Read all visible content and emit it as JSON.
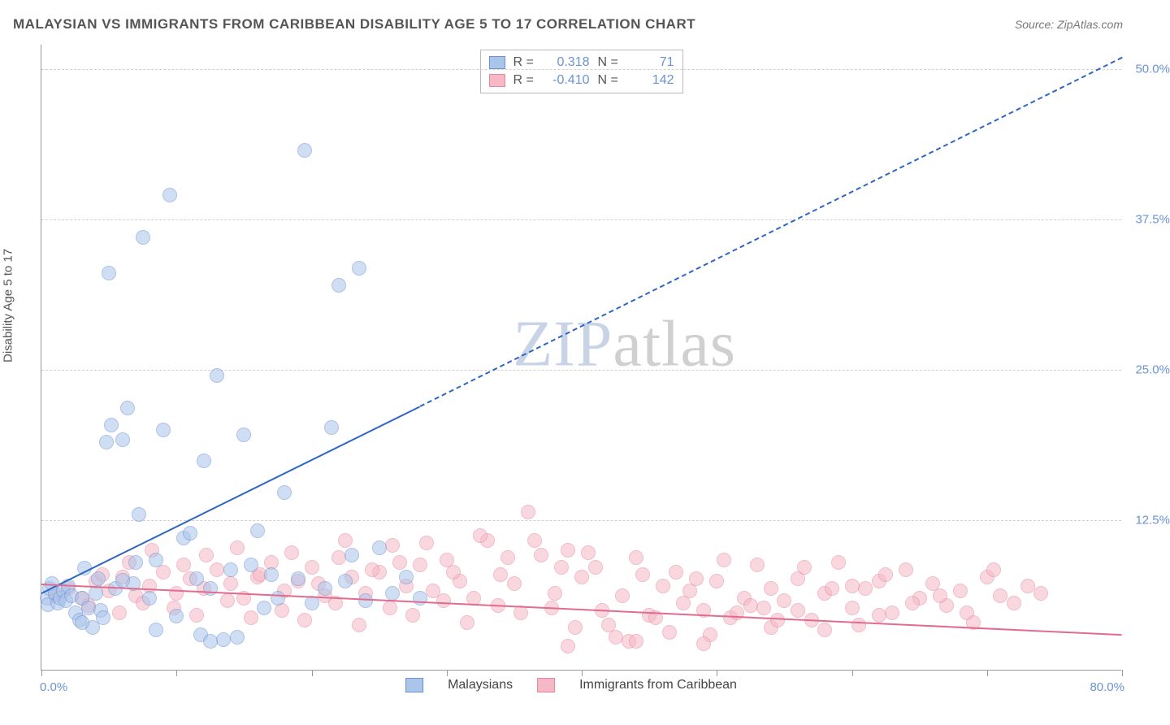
{
  "title": "MALAYSIAN VS IMMIGRANTS FROM CARIBBEAN DISABILITY AGE 5 TO 17 CORRELATION CHART",
  "source": "Source: ZipAtlas.com",
  "yAxisTitle": "Disability Age 5 to 17",
  "watermark": {
    "zip": "ZIP",
    "atlas": "atlas"
  },
  "chart": {
    "type": "scatter",
    "background_color": "#ffffff",
    "grid_color": "#d0d0d0",
    "axis_color": "#999999",
    "label_color": "#6a93d4",
    "xlim": [
      0,
      80
    ],
    "ylim": [
      0,
      52
    ],
    "xtick_step": 10,
    "ytick_step": 12.5,
    "x_labels": {
      "min": "0.0%",
      "max": "80.0%"
    },
    "y_labels": [
      "12.5%",
      "25.0%",
      "37.5%",
      "50.0%"
    ],
    "marker_radius": 9,
    "marker_opacity": 0.55
  },
  "series": [
    {
      "key": "malaysians",
      "label": "Malaysians",
      "fill_color": "#aac4ea",
      "stroke_color": "#6a93d4",
      "trend_color": "#2f66c4",
      "R": "0.318",
      "N": "71",
      "trend": {
        "x1": 0,
        "y1": 6.5,
        "x2_solid": 28,
        "y2_solid": 22,
        "x2_dash": 80,
        "y2_dash": 51,
        "width": 2
      },
      "points": [
        [
          0.4,
          6.0
        ],
        [
          0.5,
          5.5
        ],
        [
          0.6,
          6.8
        ],
        [
          0.8,
          7.2
        ],
        [
          1.0,
          6.4
        ],
        [
          1.2,
          5.6
        ],
        [
          1.4,
          6.0
        ],
        [
          1.6,
          6.6
        ],
        [
          1.8,
          5.8
        ],
        [
          2.0,
          7.0
        ],
        [
          2.2,
          6.2
        ],
        [
          2.5,
          4.8
        ],
        [
          2.8,
          4.2
        ],
        [
          3.0,
          6.0
        ],
        [
          3.2,
          8.5
        ],
        [
          3.5,
          5.2
        ],
        [
          3.8,
          3.6
        ],
        [
          4.0,
          6.4
        ],
        [
          4.2,
          7.6
        ],
        [
          4.4,
          5.0
        ],
        [
          4.6,
          4.4
        ],
        [
          5.0,
          33.0
        ],
        [
          5.5,
          6.8
        ],
        [
          6.0,
          19.2
        ],
        [
          6.4,
          21.8
        ],
        [
          6.8,
          7.2
        ],
        [
          7.2,
          13.0
        ],
        [
          7.5,
          36.0
        ],
        [
          8.0,
          6.0
        ],
        [
          8.5,
          9.2
        ],
        [
          9.0,
          20.0
        ],
        [
          9.5,
          39.5
        ],
        [
          10.0,
          4.5
        ],
        [
          10.5,
          11.0
        ],
        [
          11.0,
          11.4
        ],
        [
          11.5,
          7.6
        ],
        [
          12.0,
          17.4
        ],
        [
          12.5,
          6.8
        ],
        [
          13.0,
          24.5
        ],
        [
          13.5,
          2.6
        ],
        [
          14.0,
          8.4
        ],
        [
          14.5,
          2.8
        ],
        [
          15.0,
          19.6
        ],
        [
          15.5,
          8.8
        ],
        [
          16.0,
          11.6
        ],
        [
          16.5,
          5.2
        ],
        [
          17.0,
          8.0
        ],
        [
          17.5,
          6.0
        ],
        [
          18.0,
          14.8
        ],
        [
          19.0,
          7.6
        ],
        [
          19.5,
          43.2
        ],
        [
          20.0,
          5.6
        ],
        [
          21.0,
          6.8
        ],
        [
          21.5,
          20.2
        ],
        [
          22.0,
          32.0
        ],
        [
          22.5,
          7.4
        ],
        [
          23.0,
          9.6
        ],
        [
          23.5,
          33.4
        ],
        [
          24.0,
          5.8
        ],
        [
          25.0,
          10.2
        ],
        [
          26.0,
          6.4
        ],
        [
          27.0,
          7.8
        ],
        [
          28.0,
          6.0
        ],
        [
          3.0,
          4.0
        ],
        [
          4.8,
          19.0
        ],
        [
          5.2,
          20.4
        ],
        [
          6.0,
          7.5
        ],
        [
          7.0,
          9.0
        ],
        [
          8.5,
          3.4
        ],
        [
          11.8,
          3.0
        ],
        [
          12.5,
          2.4
        ]
      ]
    },
    {
      "key": "caribbean",
      "label": "Immigrants from Caribbean",
      "fill_color": "#f5b8c4",
      "stroke_color": "#e788a0",
      "trend_color": "#e26b8e",
      "R": "-0.410",
      "N": "142",
      "trend": {
        "x1": 0,
        "y1": 7.2,
        "x2_solid": 80,
        "y2_solid": 3.0,
        "width": 2
      },
      "points": [
        [
          1,
          6.2
        ],
        [
          2,
          6.8
        ],
        [
          3,
          6.0
        ],
        [
          4,
          7.4
        ],
        [
          5,
          6.6
        ],
        [
          6,
          7.8
        ],
        [
          7,
          6.2
        ],
        [
          8,
          7.0
        ],
        [
          9,
          8.2
        ],
        [
          10,
          6.4
        ],
        [
          11,
          7.6
        ],
        [
          12,
          6.8
        ],
        [
          13,
          8.4
        ],
        [
          14,
          7.2
        ],
        [
          15,
          6.0
        ],
        [
          16,
          7.8
        ],
        [
          17,
          9.0
        ],
        [
          18,
          6.6
        ],
        [
          19,
          7.4
        ],
        [
          20,
          8.6
        ],
        [
          21,
          6.2
        ],
        [
          22,
          9.4
        ],
        [
          23,
          7.8
        ],
        [
          24,
          6.4
        ],
        [
          25,
          8.2
        ],
        [
          26,
          10.4
        ],
        [
          27,
          7.0
        ],
        [
          28,
          8.8
        ],
        [
          29,
          6.6
        ],
        [
          30,
          9.2
        ],
        [
          31,
          7.4
        ],
        [
          32,
          6.0
        ],
        [
          33,
          10.8
        ],
        [
          34,
          8.0
        ],
        [
          35,
          7.2
        ],
        [
          36,
          13.2
        ],
        [
          37,
          9.6
        ],
        [
          38,
          6.4
        ],
        [
          39,
          10.0
        ],
        [
          40,
          7.8
        ],
        [
          41,
          8.6
        ],
        [
          42,
          3.8
        ],
        [
          43,
          6.2
        ],
        [
          44,
          9.4
        ],
        [
          45,
          4.6
        ],
        [
          46,
          7.0
        ],
        [
          47,
          8.2
        ],
        [
          48,
          6.6
        ],
        [
          49,
          5.0
        ],
        [
          50,
          7.4
        ],
        [
          51,
          4.4
        ],
        [
          52,
          6.0
        ],
        [
          53,
          8.8
        ],
        [
          54,
          3.6
        ],
        [
          55,
          5.8
        ],
        [
          56,
          7.6
        ],
        [
          57,
          4.2
        ],
        [
          58,
          6.4
        ],
        [
          59,
          9.0
        ],
        [
          60,
          5.2
        ],
        [
          61,
          6.8
        ],
        [
          62,
          7.4
        ],
        [
          63,
          4.8
        ],
        [
          64,
          8.4
        ],
        [
          65,
          6.0
        ],
        [
          66,
          7.2
        ],
        [
          67,
          5.4
        ],
        [
          68,
          6.6
        ],
        [
          69,
          4.0
        ],
        [
          70,
          7.8
        ],
        [
          71,
          6.2
        ],
        [
          72,
          5.6
        ],
        [
          73,
          7.0
        ],
        [
          74,
          6.4
        ],
        [
          54,
          6.8
        ],
        [
          56,
          5.0
        ],
        [
          58,
          3.4
        ],
        [
          60,
          7.0
        ],
        [
          62,
          4.6
        ],
        [
          4.5,
          8.0
        ],
        [
          6.5,
          9.0
        ],
        [
          8.2,
          10.0
        ],
        [
          10.5,
          8.8
        ],
        [
          12.2,
          9.6
        ],
        [
          14.5,
          10.2
        ],
        [
          16.2,
          8.0
        ],
        [
          18.5,
          9.8
        ],
        [
          20.5,
          7.2
        ],
        [
          22.5,
          10.8
        ],
        [
          24.5,
          8.4
        ],
        [
          26.5,
          9.0
        ],
        [
          28.5,
          10.6
        ],
        [
          30.5,
          8.2
        ],
        [
          32.5,
          11.2
        ],
        [
          34.5,
          9.4
        ],
        [
          36.5,
          10.8
        ],
        [
          38.5,
          8.6
        ],
        [
          40.5,
          9.8
        ],
        [
          42.5,
          2.8
        ],
        [
          44.5,
          8.0
        ],
        [
          46.5,
          3.2
        ],
        [
          48.5,
          7.6
        ],
        [
          50.5,
          9.2
        ],
        [
          52.5,
          5.4
        ],
        [
          54.5,
          4.2
        ],
        [
          56.5,
          8.6
        ],
        [
          58.5,
          6.8
        ],
        [
          60.5,
          3.8
        ],
        [
          62.5,
          8.0
        ],
        [
          64.5,
          5.6
        ],
        [
          66.5,
          6.2
        ],
        [
          68.5,
          4.8
        ],
        [
          70.5,
          8.4
        ],
        [
          3.5,
          5.4
        ],
        [
          5.8,
          4.8
        ],
        [
          7.5,
          5.6
        ],
        [
          9.8,
          5.2
        ],
        [
          11.5,
          4.6
        ],
        [
          13.8,
          5.8
        ],
        [
          15.5,
          4.4
        ],
        [
          17.8,
          5.0
        ],
        [
          19.5,
          4.2
        ],
        [
          21.8,
          5.6
        ],
        [
          23.5,
          3.8
        ],
        [
          25.8,
          5.2
        ],
        [
          27.5,
          4.6
        ],
        [
          29.8,
          5.8
        ],
        [
          31.5,
          4.0
        ],
        [
          33.8,
          5.4
        ],
        [
          35.5,
          4.8
        ],
        [
          37.8,
          5.2
        ],
        [
          39.5,
          3.6
        ],
        [
          41.5,
          5.0
        ],
        [
          43.5,
          2.4
        ],
        [
          45.5,
          4.4
        ],
        [
          47.5,
          5.6
        ],
        [
          49.5,
          3.0
        ],
        [
          51.5,
          4.8
        ],
        [
          53.5,
          5.2
        ],
        [
          39.0,
          2.0
        ],
        [
          44.0,
          2.4
        ],
        [
          49.0,
          2.2
        ]
      ]
    }
  ]
}
